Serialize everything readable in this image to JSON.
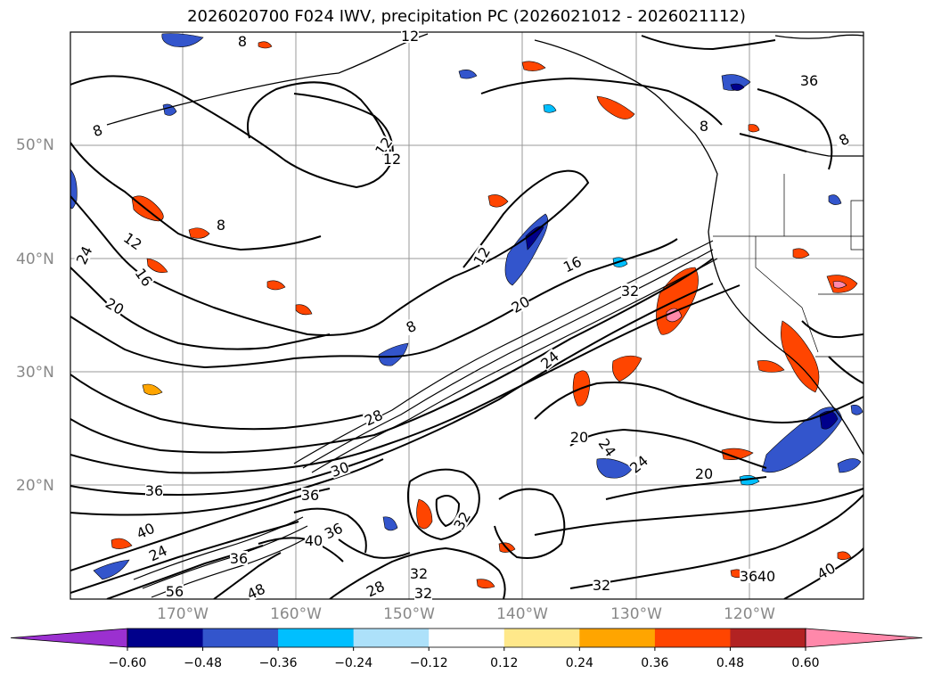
{
  "title": "2026020700 F024 IWV, precipitation PC (2026021012 - 2026021112)",
  "lat_labels": [
    "50°N",
    "40°N",
    "30°N",
    "20°N"
  ],
  "lon_labels": [
    "170°W",
    "160°W",
    "150°W",
    "140°W",
    "130°W",
    "120°W"
  ],
  "colorbar": {
    "ticks": [
      "−0.60",
      "−0.48",
      "−0.36",
      "−0.24",
      "−0.12",
      "0.12",
      "0.24",
      "0.36",
      "0.48",
      "0.60"
    ],
    "colors": [
      "#9b30d0",
      "#00008b",
      "#3355cc",
      "#00bfff",
      "#ade1fa",
      "#ffffff",
      "#ffe88a",
      "#ffa500",
      "#ff4500",
      "#b22222",
      "#ff88aa"
    ]
  },
  "contour_labels": [
    "12",
    "8",
    "12",
    "12",
    "8",
    "8",
    "24",
    "12",
    "16",
    "20",
    "8",
    "12",
    "16",
    "20",
    "32",
    "24",
    "8",
    "28",
    "20",
    "24",
    "24",
    "20",
    "36",
    "30",
    "40",
    "36",
    "36",
    "24",
    "32",
    "40",
    "36",
    "32",
    "28",
    "48",
    "36",
    "56",
    "32",
    "32",
    "40",
    "40",
    "36",
    "8"
  ],
  "palette": {
    "precip_pos": "#ff4500",
    "precip_orange": "#ffa500",
    "precip_yellow": "#ffe88a",
    "precip_neg": "#3355cc",
    "precip_dark": "#00008b",
    "precip_light": "#00bfff"
  }
}
